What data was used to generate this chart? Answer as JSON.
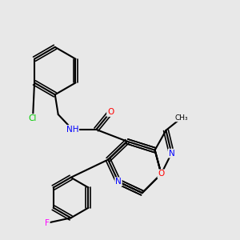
{
  "background_color": "#e8e8e8",
  "bond_color": "#000000",
  "atom_colors": {
    "N": "#0000ff",
    "O": "#ff0000",
    "Cl": "#00cc00",
    "F": "#ff00ff",
    "C": "#000000",
    "H": "#808080"
  }
}
